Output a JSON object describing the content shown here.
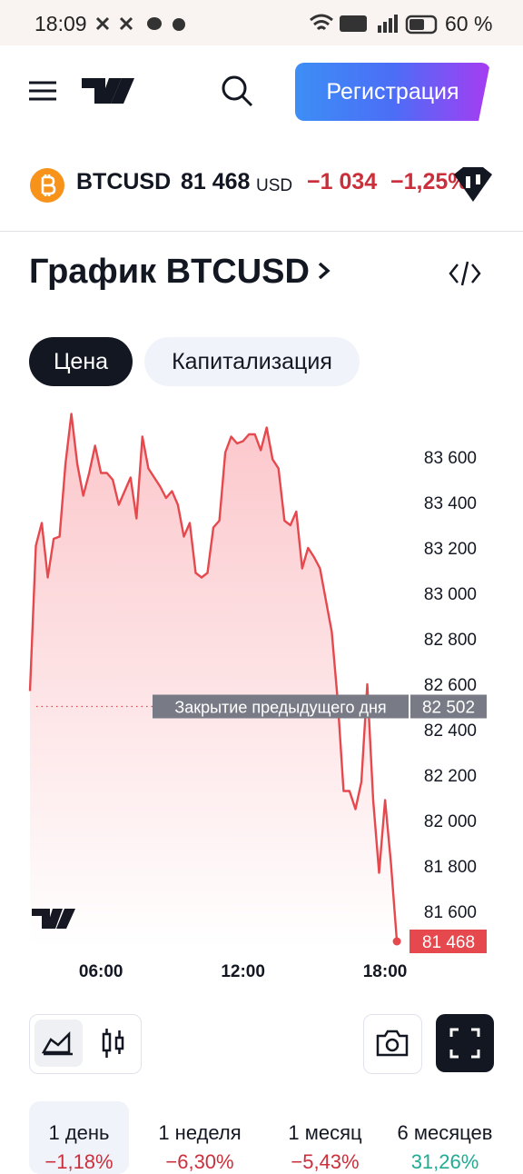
{
  "status_bar": {
    "time": "18:09",
    "battery": "60 %"
  },
  "header": {
    "register_button": "Регистрация"
  },
  "ticker": {
    "symbol": "BTCUSD",
    "price": "81 468",
    "currency": "USD",
    "change": "−1 034",
    "change_pct": "−1,25%"
  },
  "section_title": "График BTCUSD",
  "tabs": [
    "Цена",
    "Капитализация"
  ],
  "chart": {
    "type": "line",
    "color": "#e5484d",
    "x": [
      3,
      3.25,
      3.5,
      3.75,
      4,
      4.25,
      4.5,
      4.75,
      5,
      5.25,
      5.5,
      5.75,
      6,
      6.25,
      6.5,
      6.75,
      7,
      7.25,
      7.5,
      7.75,
      8,
      8.25,
      8.5,
      8.75,
      9,
      9.25,
      9.5,
      9.75,
      10,
      10.25,
      10.5,
      10.75,
      11,
      11.25,
      11.5,
      11.75,
      12,
      12.25,
      12.5,
      12.75,
      13,
      13.25,
      13.5,
      13.75,
      14,
      14.25,
      14.5,
      14.75,
      15,
      15.25,
      15.5,
      15.75,
      16,
      16.25,
      16.5,
      16.75,
      17,
      17.25,
      17.5,
      17.75,
      18,
      18.25,
      18.5
    ],
    "values": [
      82570,
      83210,
      83310,
      83070,
      83240,
      83250,
      83570,
      83790,
      83570,
      83430,
      83530,
      83650,
      83530,
      83530,
      83500,
      83390,
      83450,
      83510,
      83330,
      83690,
      83550,
      83510,
      83470,
      83420,
      83450,
      83390,
      83250,
      83310,
      83090,
      83070,
      83090,
      83290,
      83320,
      83620,
      83690,
      83660,
      83670,
      83700,
      83700,
      83630,
      83730,
      83590,
      83550,
      83320,
      83300,
      83360,
      83110,
      83200,
      83160,
      83110,
      82970,
      82830,
      82530,
      82130,
      82130,
      82050,
      82170,
      82600,
      82090,
      81770,
      82090,
      81810,
      81468
    ],
    "xlim": [
      3,
      18.65
    ],
    "ylim": [
      81440,
      83800
    ],
    "xticks": [
      {
        "value": 6,
        "label": "06:00"
      },
      {
        "value": 12,
        "label": "12:00"
      },
      {
        "value": 18,
        "label": "18:00"
      }
    ],
    "yticks": [
      {
        "value": 81600,
        "label": "81 600"
      },
      {
        "value": 81800,
        "label": "81 800"
      },
      {
        "value": 82000,
        "label": "82 000"
      },
      {
        "value": 82200,
        "label": "82 200"
      },
      {
        "value": 82400,
        "label": "82 400"
      },
      {
        "value": 82600,
        "label": "82 600"
      },
      {
        "value": 82800,
        "label": "82 800"
      },
      {
        "value": 83000,
        "label": "83 000"
      },
      {
        "value": 83200,
        "label": "83 200"
      },
      {
        "value": 83400,
        "label": "83 400"
      },
      {
        "value": 83600,
        "label": "83 600"
      }
    ],
    "previous_close": {
      "label": "Закрытие предыдущего дня",
      "value": 82502,
      "value_label": "82 502"
    },
    "last_price": {
      "value": 81468,
      "value_label": "81 468"
    }
  },
  "periods": [
    {
      "label": "1 день",
      "change": "−1,18%"
    },
    {
      "label": "1 неделя",
      "change": "−6,30%"
    },
    {
      "label": "1 месяц",
      "change": "−5,43%"
    },
    {
      "label": "6 месяцев",
      "change": "31,26%"
    }
  ]
}
